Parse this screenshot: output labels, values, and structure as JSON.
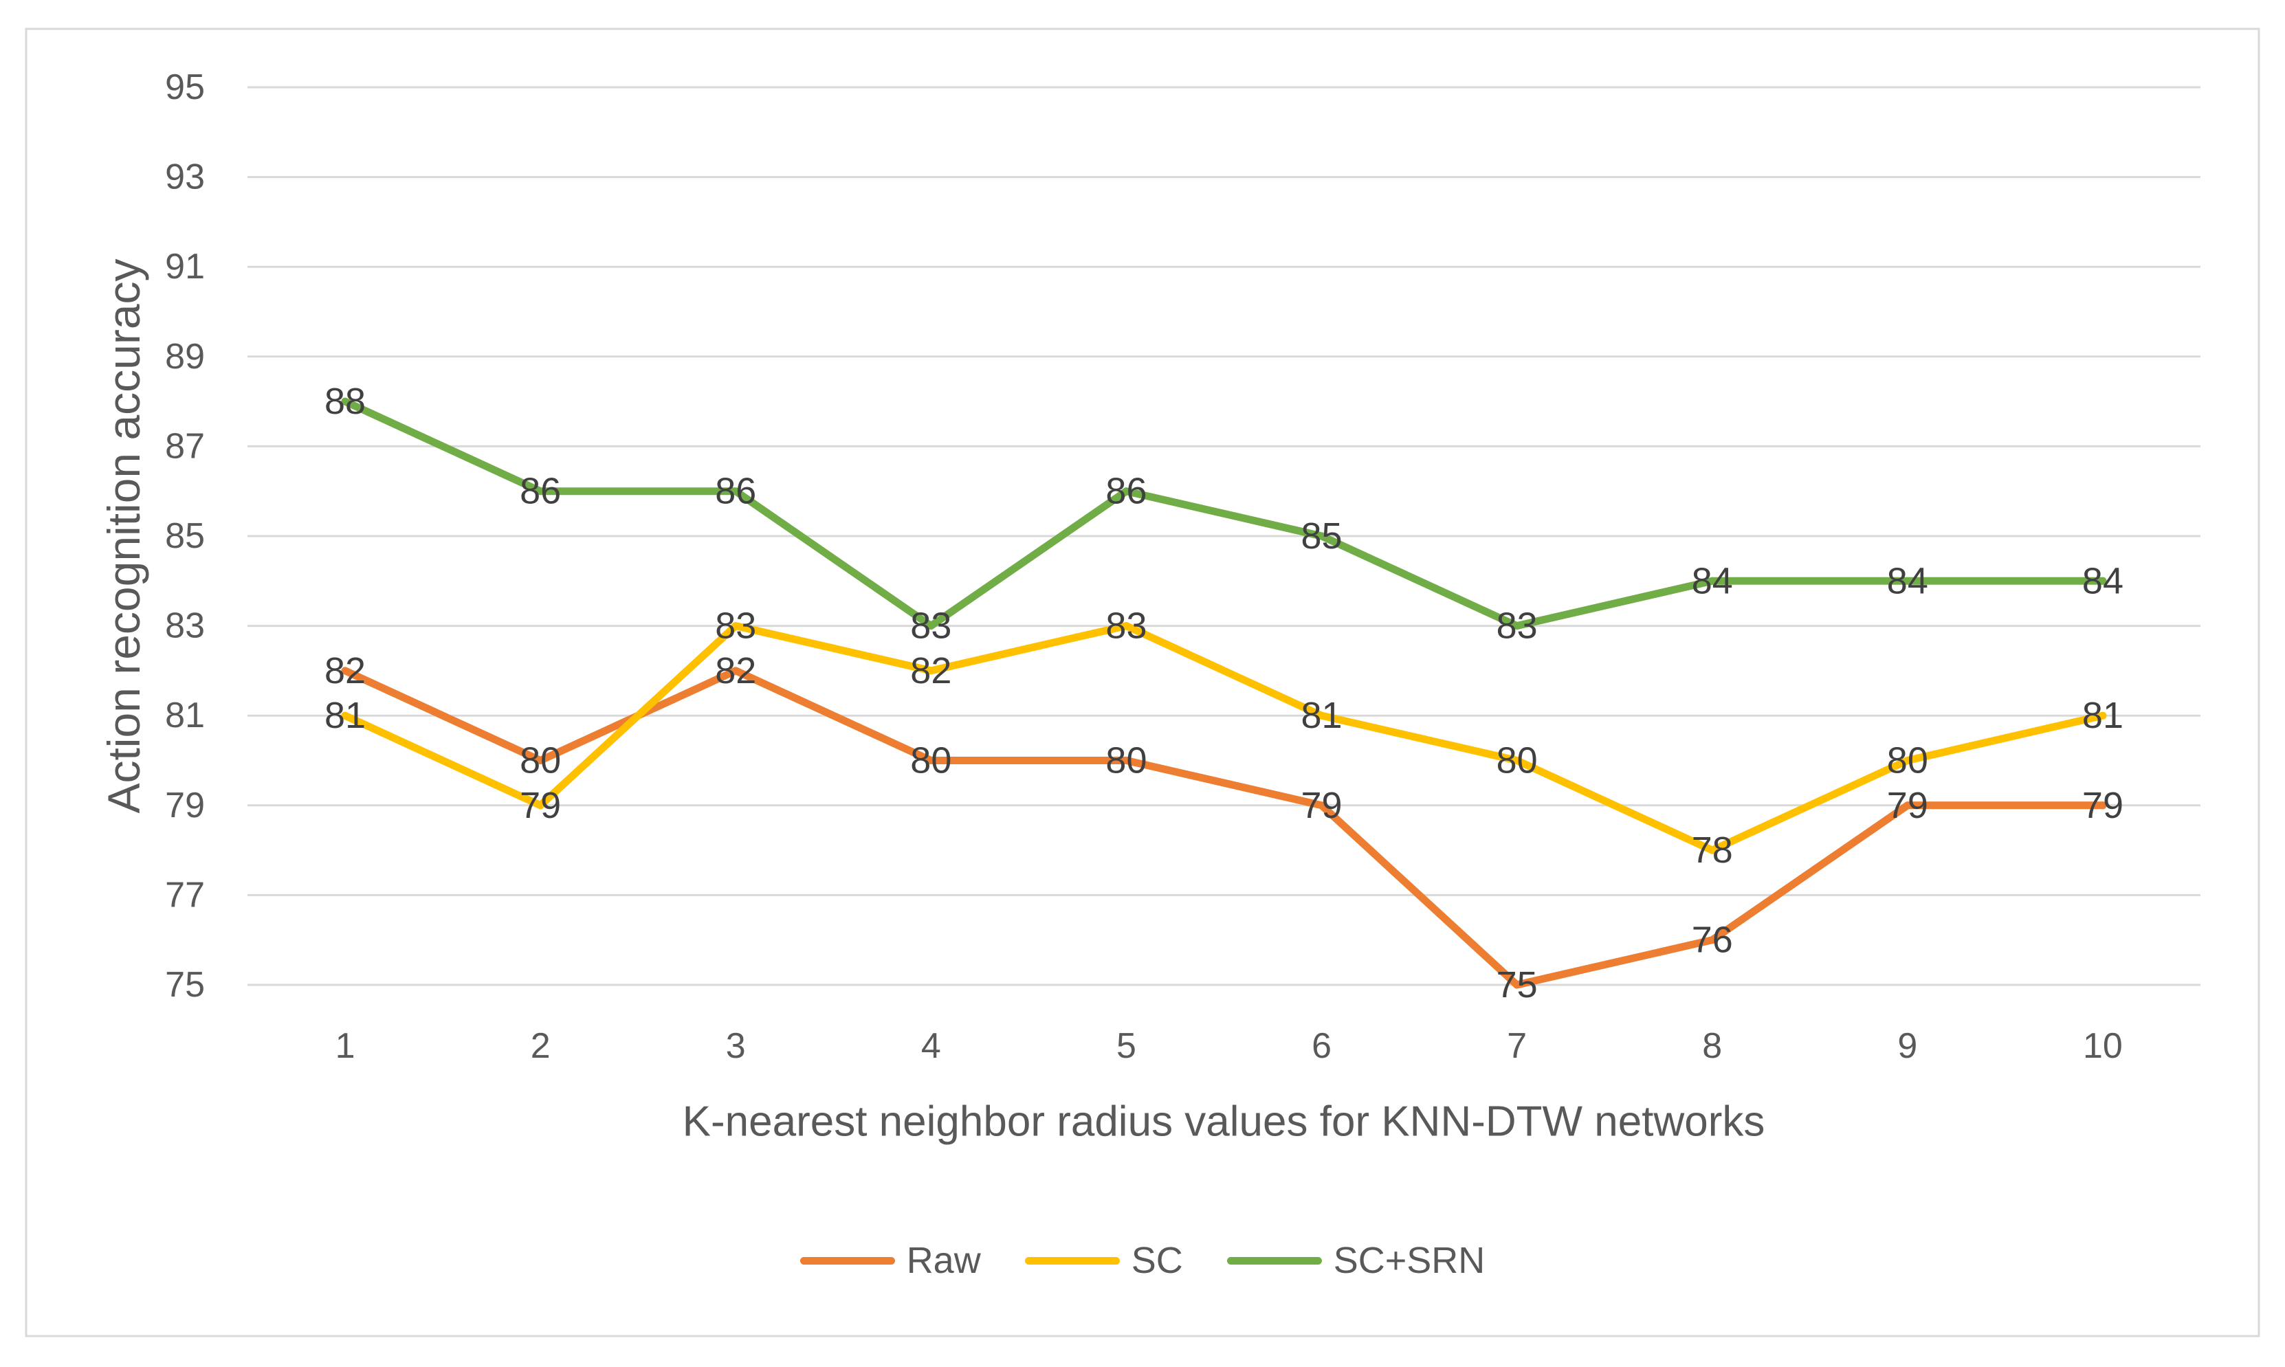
{
  "chart_data": {
    "type": "line",
    "xlabel": "K-nearest neighbor radius values for KNN-DTW networks",
    "ylabel": "Action recognition accuracy",
    "categories": [
      "1",
      "2",
      "3",
      "4",
      "5",
      "6",
      "7",
      "8",
      "9",
      "10"
    ],
    "ylim": [
      75,
      95
    ],
    "yticks": [
      75,
      77,
      79,
      81,
      83,
      85,
      87,
      89,
      91,
      93,
      95
    ],
    "grid": true,
    "legend": "bottom",
    "data_labels": true,
    "series": [
      {
        "name": "Raw",
        "color": "#ED7D31",
        "values": [
          82,
          80,
          82,
          80,
          80,
          79,
          75,
          76,
          79,
          79
        ]
      },
      {
        "name": "SC",
        "color": "#FFC000",
        "values": [
          81,
          79,
          83,
          82,
          83,
          81,
          80,
          78,
          80,
          81
        ]
      },
      {
        "name": "SC+SRN",
        "color": "#70AD47",
        "values": [
          88,
          86,
          86,
          83,
          86,
          85,
          83,
          84,
          84,
          84
        ]
      }
    ]
  }
}
